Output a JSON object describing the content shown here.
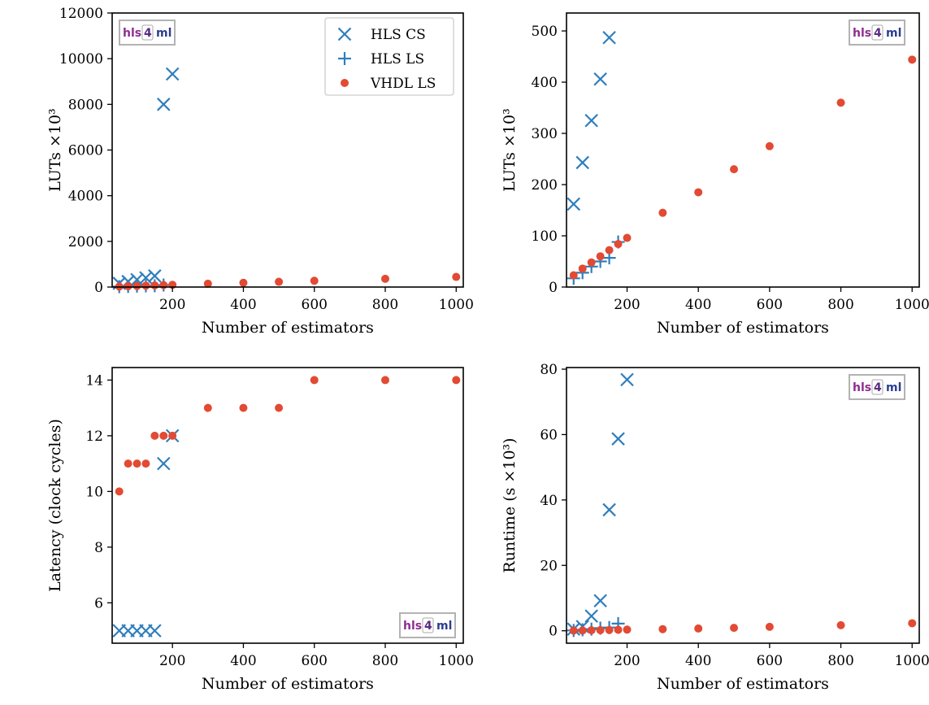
{
  "logo": {
    "part1": "hls",
    "part2": "4",
    "part3": "ml"
  },
  "legend": {
    "hls_cs": "HLS CS",
    "hls_ls": "HLS LS",
    "vhdl_ls": "VHDL LS"
  },
  "colors": {
    "hls": "#2f7ebc",
    "vhdl": "#e24a33"
  },
  "chart_data": [
    {
      "id": "lut-full",
      "type": "scatter",
      "xlabel": "Number of estimators",
      "ylabel": "LUTs ×10³",
      "xlim": [
        30,
        1020
      ],
      "ylim": [
        0,
        12000
      ],
      "xticks": [
        200,
        400,
        600,
        800,
        1000
      ],
      "yticks": [
        0,
        2000,
        4000,
        6000,
        8000,
        10000,
        12000
      ],
      "legend": "top-right",
      "logo": "top-left",
      "grid": false,
      "series": [
        {
          "key": "hls_cs",
          "marker": "x",
          "x": [
            50,
            75,
            100,
            125,
            150,
            175,
            200
          ],
          "y": [
            162,
            243,
            325,
            406,
            487,
            8000,
            9330
          ]
        },
        {
          "key": "hls_ls",
          "marker": "+",
          "x": [
            50,
            75,
            100,
            125,
            150,
            175
          ],
          "y": [
            17,
            28,
            40,
            50,
            57,
            88
          ]
        },
        {
          "key": "vhdl_ls",
          "marker": "o",
          "x": [
            50,
            75,
            100,
            125,
            150,
            175,
            200,
            300,
            400,
            500,
            600,
            800,
            1000
          ],
          "y": [
            23,
            36,
            48,
            60,
            72,
            84,
            96,
            145,
            185,
            230,
            275,
            360,
            444
          ]
        }
      ]
    },
    {
      "id": "lut-zoom",
      "type": "scatter",
      "xlabel": "Number of estimators",
      "ylabel": "LUTs ×10³",
      "xlim": [
        30,
        1020
      ],
      "ylim": [
        0,
        535
      ],
      "xticks": [
        200,
        400,
        600,
        800,
        1000
      ],
      "yticks": [
        0,
        100,
        200,
        300,
        400,
        500
      ],
      "logo": "top-right",
      "grid": false,
      "series": [
        {
          "key": "hls_cs",
          "marker": "x",
          "x": [
            50,
            75,
            100,
            125,
            150
          ],
          "y": [
            162,
            243,
            325,
            406,
            487
          ]
        },
        {
          "key": "hls_ls",
          "marker": "+",
          "x": [
            50,
            75,
            100,
            125,
            150,
            175
          ],
          "y": [
            17,
            28,
            40,
            50,
            57,
            88
          ]
        },
        {
          "key": "vhdl_ls",
          "marker": "o",
          "x": [
            50,
            75,
            100,
            125,
            150,
            175,
            200,
            300,
            400,
            500,
            600,
            800,
            1000
          ],
          "y": [
            23,
            36,
            48,
            60,
            72,
            84,
            96,
            145,
            185,
            230,
            275,
            360,
            444
          ]
        }
      ]
    },
    {
      "id": "latency",
      "type": "scatter",
      "xlabel": "Number of estimators",
      "ylabel": "Latency (clock cycles)",
      "xlim": [
        30,
        1020
      ],
      "ylim": [
        4.55,
        14.45
      ],
      "xticks": [
        200,
        400,
        600,
        800,
        1000
      ],
      "yticks": [
        6,
        8,
        10,
        12,
        14
      ],
      "logo": "bottom-right",
      "grid": false,
      "series": [
        {
          "key": "hls_cs",
          "marker": "x",
          "x": [
            50,
            75,
            100,
            125,
            150,
            175,
            200
          ],
          "y": [
            5,
            5,
            5,
            5,
            5,
            11,
            12
          ]
        },
        {
          "key": "vhdl_ls",
          "marker": "o",
          "x": [
            50,
            75,
            100,
            125,
            150,
            175,
            200,
            300,
            400,
            500,
            600,
            800,
            1000
          ],
          "y": [
            10,
            11,
            11,
            11,
            12,
            12,
            12,
            13,
            13,
            13,
            14,
            14,
            14
          ]
        }
      ]
    },
    {
      "id": "runtime",
      "type": "scatter",
      "xlabel": "Number of estimators",
      "ylabel": "Runtime (s ×10³)",
      "xlim": [
        30,
        1020
      ],
      "ylim": [
        -3.8,
        80.5
      ],
      "xticks": [
        200,
        400,
        600,
        800,
        1000
      ],
      "yticks": [
        0,
        20,
        40,
        60,
        80
      ],
      "logo": "top-right",
      "grid": false,
      "series": [
        {
          "key": "hls_cs",
          "marker": "x",
          "x": [
            50,
            75,
            100,
            125,
            150,
            175,
            200
          ],
          "y": [
            0.5,
            1.3,
            4.5,
            9.2,
            37,
            58.7,
            76.8
          ]
        },
        {
          "key": "hls_ls",
          "marker": "+",
          "x": [
            50,
            75,
            100,
            125,
            150,
            175
          ],
          "y": [
            0.1,
            0.3,
            0.5,
            0.8,
            1.0,
            2.2
          ]
        },
        {
          "key": "vhdl_ls",
          "marker": "o",
          "x": [
            50,
            75,
            100,
            125,
            150,
            175,
            200,
            300,
            400,
            500,
            600,
            800,
            1000
          ],
          "y": [
            0.05,
            0.1,
            0.15,
            0.2,
            0.25,
            0.3,
            0.35,
            0.5,
            0.7,
            0.9,
            1.2,
            1.7,
            2.3
          ]
        }
      ]
    }
  ]
}
